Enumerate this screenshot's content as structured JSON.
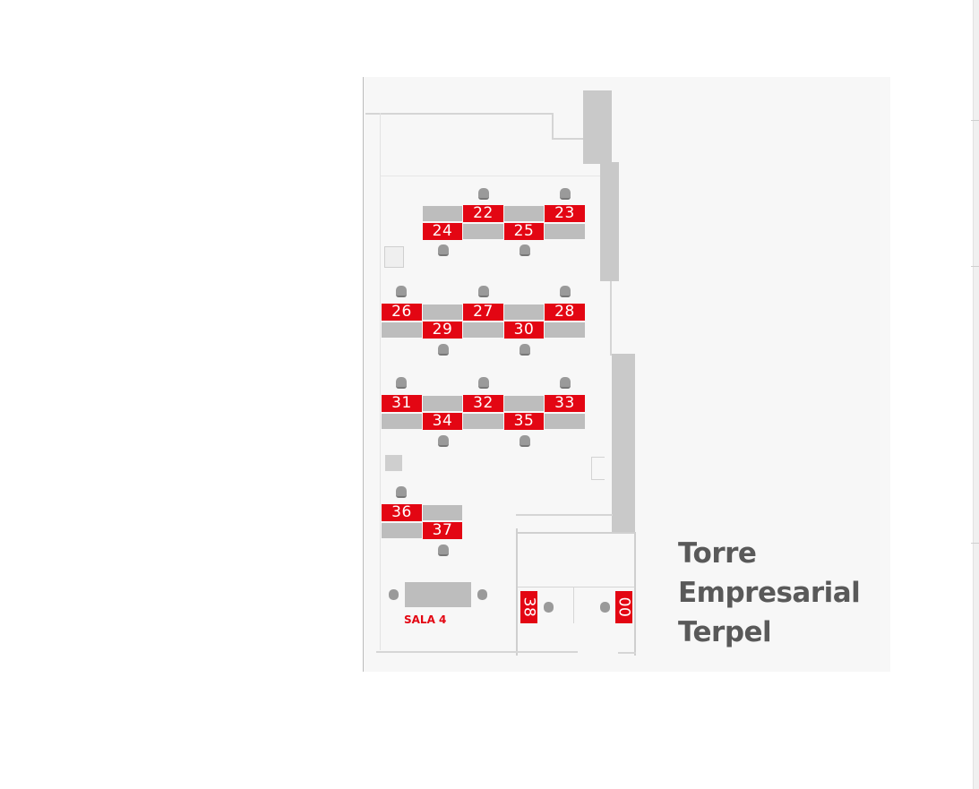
{
  "map": {
    "desks": [
      "22",
      "23",
      "24",
      "25",
      "26",
      "27",
      "28",
      "29",
      "30",
      "31",
      "32",
      "33",
      "34",
      "35",
      "36",
      "37",
      "38",
      "00"
    ],
    "room_label": "SALA 4",
    "building_name": [
      "Torre",
      "Empresarial",
      "Terpel"
    ]
  },
  "colors": {
    "seat_accent": "#e30613",
    "desk_grey": "#bdbdbd",
    "floor": "#f7f7f7",
    "title_text": "#595959"
  }
}
